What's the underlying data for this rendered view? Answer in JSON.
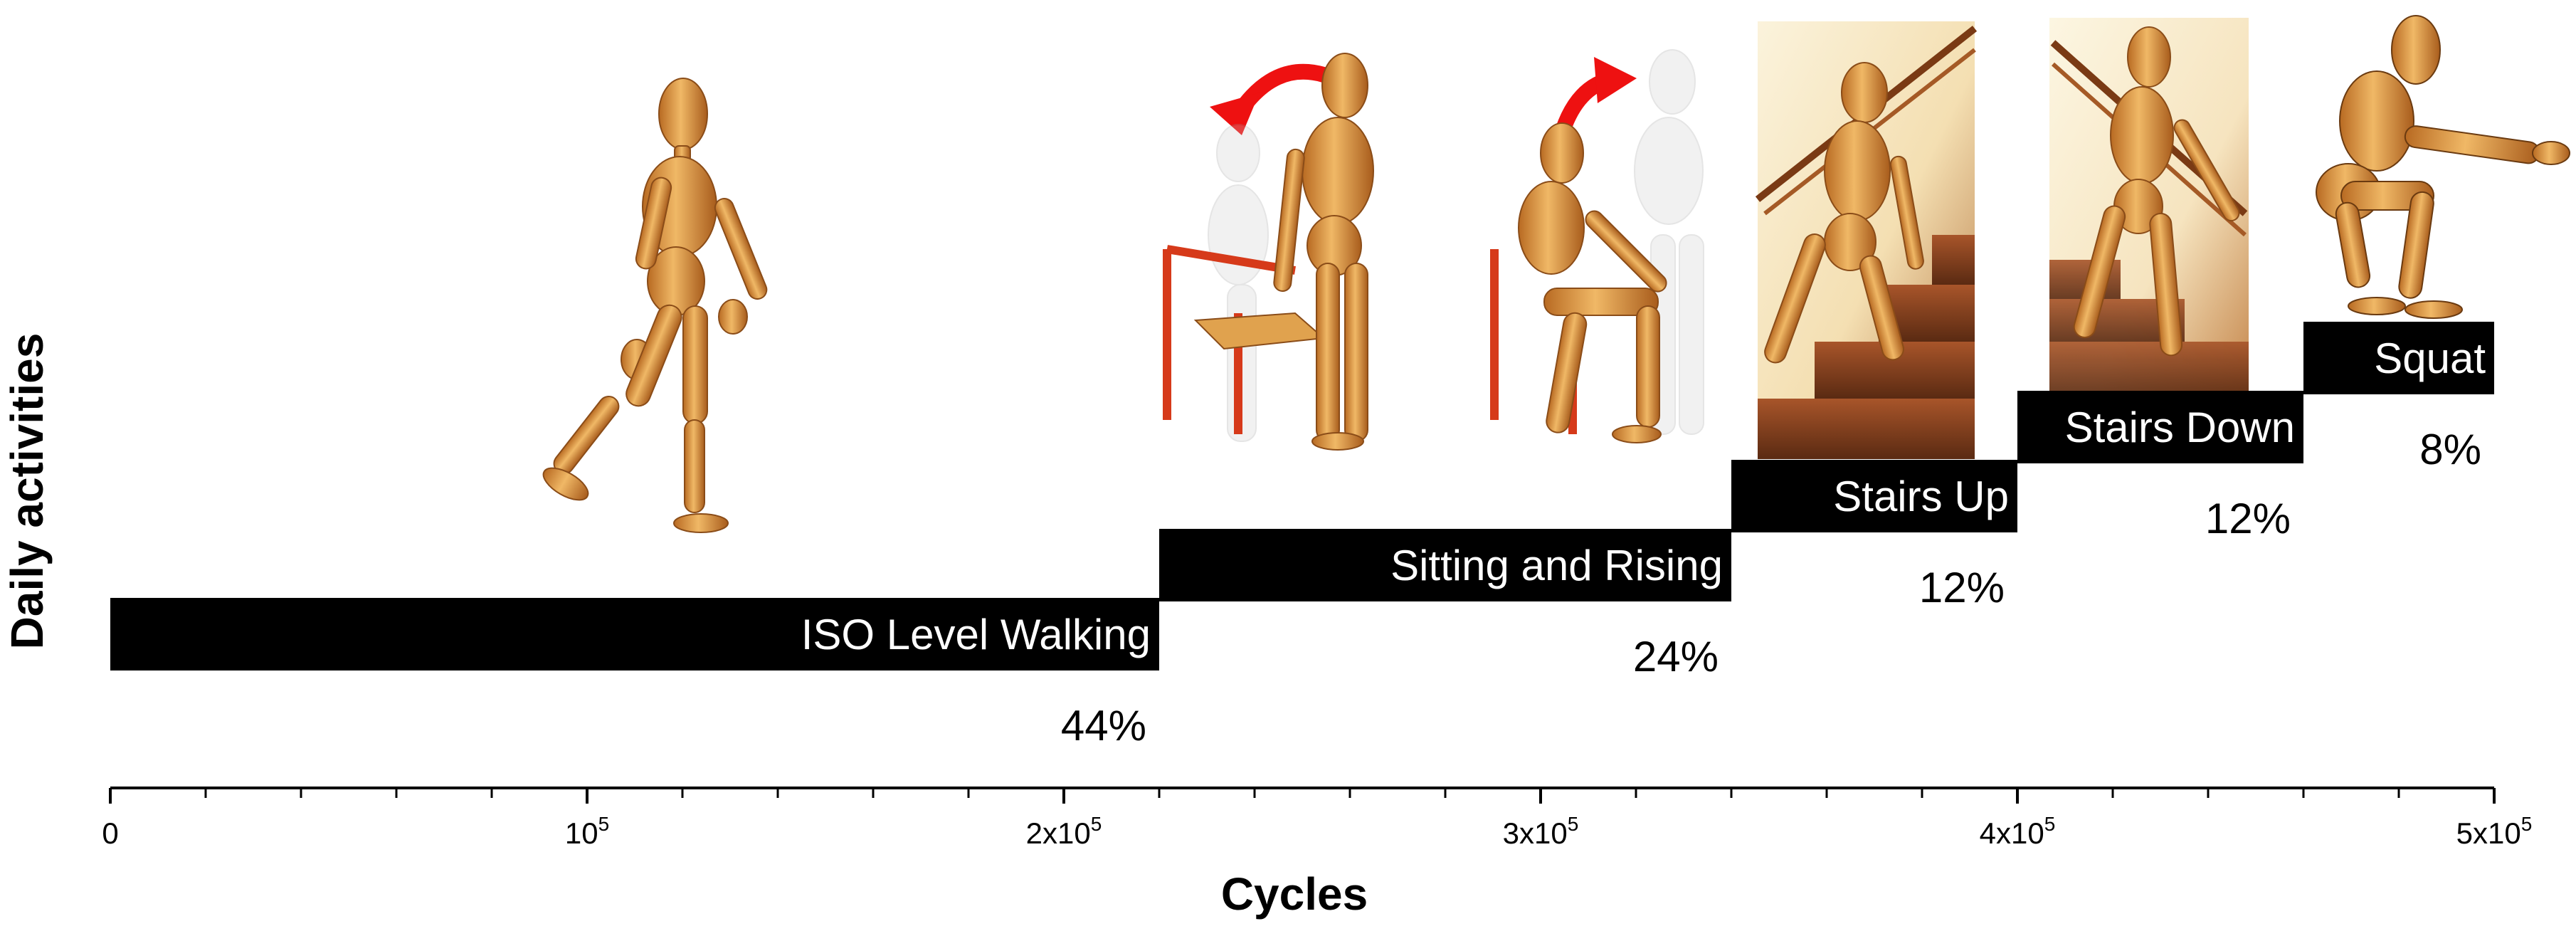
{
  "chart_data": {
    "type": "bar",
    "orientation": "horizontal-staircase",
    "xlabel": "Cycles",
    "ylabel": "Daily activities",
    "xlim": [
      0,
      500000
    ],
    "x_ticks": [
      {
        "value": 0,
        "base": "0",
        "exp": ""
      },
      {
        "value": 100000,
        "base": "10",
        "exp": "5"
      },
      {
        "value": 200000,
        "base": "2x10",
        "exp": "5"
      },
      {
        "value": 300000,
        "base": "3x10",
        "exp": "5"
      },
      {
        "value": 400000,
        "base": "4x10",
        "exp": "5"
      },
      {
        "value": 500000,
        "base": "5x10",
        "exp": "5"
      }
    ],
    "minor_tick_step": 20000,
    "activities": [
      {
        "label": "ISO Level Walking",
        "start": 0,
        "end": 220000,
        "percent": "44%"
      },
      {
        "label": "Sitting and Rising",
        "start": 220000,
        "end": 340000,
        "percent": "24%"
      },
      {
        "label": "Stairs Up",
        "start": 340000,
        "end": 400000,
        "percent": "12%"
      },
      {
        "label": "Stairs Down",
        "start": 400000,
        "end": 460000,
        "percent": "12%"
      },
      {
        "label": "Squat",
        "start": 460000,
        "end": 500000,
        "percent": "8%"
      }
    ],
    "colors": {
      "bar": "#000000",
      "bar_text": "#ffffff",
      "arrow": "#ee1111",
      "wood": "#d9953f",
      "chair": "#d63a1a"
    }
  },
  "illustrations": [
    {
      "name": "walking-figure",
      "activity": "ISO Level Walking"
    },
    {
      "name": "rising-figure",
      "activity": "Sitting and Rising"
    },
    {
      "name": "sitting-figure",
      "activity": "Sitting and Rising"
    },
    {
      "name": "stairs-up-photo",
      "activity": "Stairs Up"
    },
    {
      "name": "stairs-down-photo",
      "activity": "Stairs Down"
    },
    {
      "name": "squat-figure",
      "activity": "Squat"
    }
  ]
}
